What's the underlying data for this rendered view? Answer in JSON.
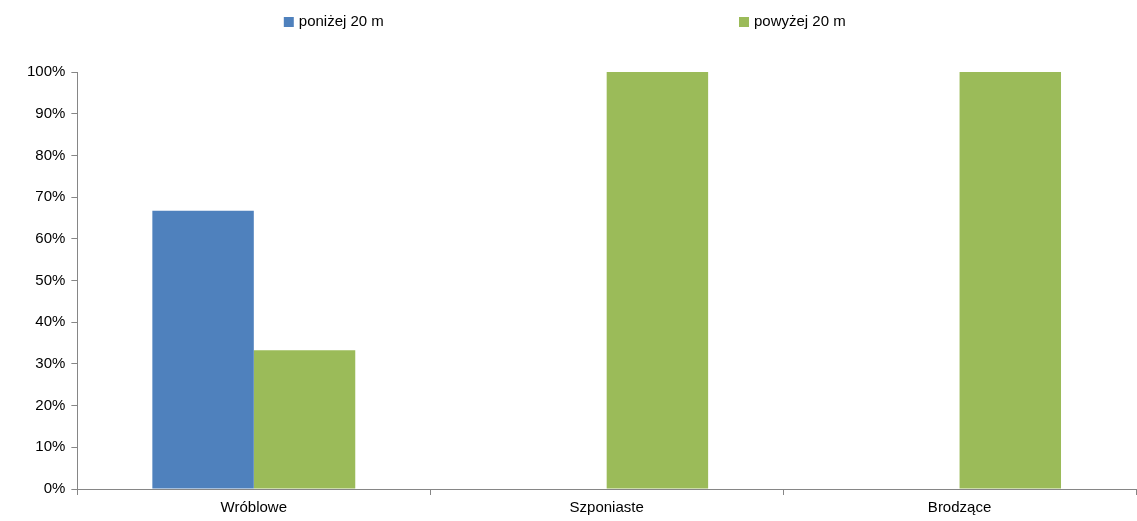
{
  "chart_data": {
    "type": "bar",
    "categories": [
      "Wróblowe",
      "Szponiaste",
      "Brodzące"
    ],
    "series": [
      {
        "name": "poniżej 20 m",
        "color": "#4f81bd",
        "values": [
          66.7,
          0,
          0
        ]
      },
      {
        "name": "powyżej 20 m",
        "color": "#9bbb59",
        "values": [
          33.3,
          100,
          100
        ]
      }
    ],
    "ylim": [
      0,
      100
    ],
    "yticks": [
      {
        "value": 0,
        "label": "0%"
      },
      {
        "value": 10,
        "label": "10%"
      },
      {
        "value": 20,
        "label": "20%"
      },
      {
        "value": 30,
        "label": "30%"
      },
      {
        "value": 40,
        "label": "40%"
      },
      {
        "value": 50,
        "label": "50%"
      },
      {
        "value": 60,
        "label": "60%"
      },
      {
        "value": 70,
        "label": "70%"
      },
      {
        "value": 80,
        "label": "80%"
      },
      {
        "value": 90,
        "label": "90%"
      },
      {
        "value": 100,
        "label": "100%"
      }
    ],
    "legend": "top"
  }
}
